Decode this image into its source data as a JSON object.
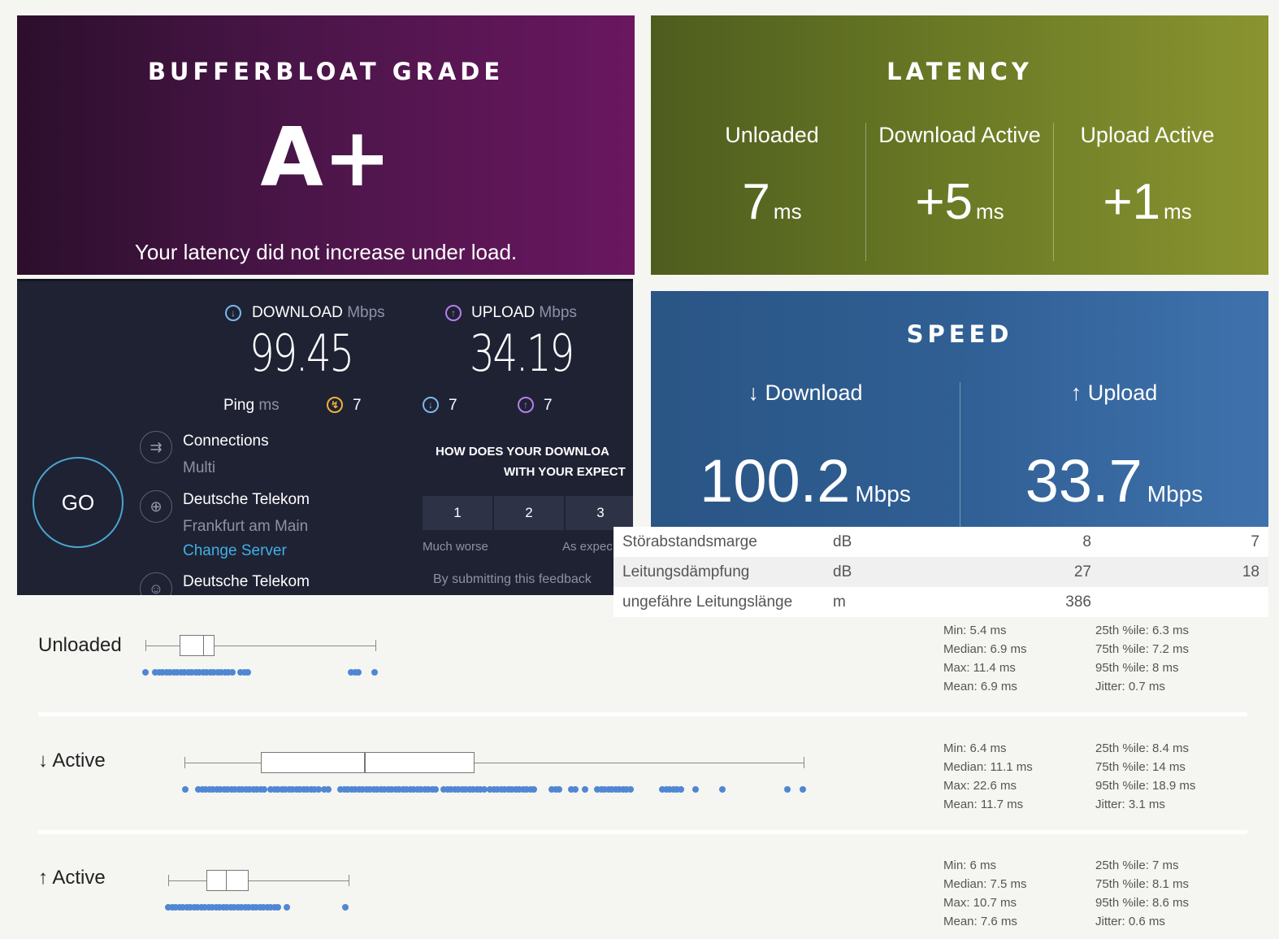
{
  "grade": {
    "title": "BUFFERBLOAT GRADE",
    "value": "A+",
    "message": "Your latency did not increase under load."
  },
  "latency": {
    "title": "LATENCY",
    "cols": [
      {
        "label": "Unloaded",
        "value": "7",
        "unit": "ms"
      },
      {
        "label": "Download Active",
        "value": "+5",
        "unit": "ms"
      },
      {
        "label": "Upload Active",
        "value": "+1",
        "unit": "ms"
      }
    ]
  },
  "speedtest": {
    "download_label": "DOWNLOAD",
    "download_unit": "Mbps",
    "download_value": "99.45",
    "upload_label": "UPLOAD",
    "upload_unit": "Mbps",
    "upload_value": "34.19",
    "ping_label": "Ping",
    "ping_unit": "ms",
    "ping_idle": "7",
    "ping_download": "7",
    "ping_upload": "7",
    "connections_label": "Connections",
    "connections_value": "Multi",
    "isp": "Deutsche Telekom",
    "server_location": "Frankfurt am Main",
    "change_server": "Change Server",
    "isp2": "Deutsche Telekom",
    "go_label": "GO",
    "feedback_q1": "HOW DOES YOUR DOWNLOA",
    "feedback_q2": "WITH YOUR EXPECT",
    "feedback_buttons": [
      "1",
      "2",
      "3"
    ],
    "scale_low": "Much worse",
    "scale_mid": "As expec",
    "submit_note": "By submitting this feedback"
  },
  "speed": {
    "title": "SPEED",
    "download_label": "↓ Download",
    "download_value": "100.2",
    "download_unit": "Mbps",
    "upload_label": "↑ Upload",
    "upload_value": "33.7",
    "upload_unit": "Mbps"
  },
  "dsl": [
    {
      "name": "Störabstandsmarge",
      "unit": "dB",
      "a": "8",
      "b": "7"
    },
    {
      "name": "Leitungsdämpfung",
      "unit": "dB",
      "a": "27",
      "b": "18"
    },
    {
      "name": "ungefähre Leitungslänge",
      "unit": "m",
      "a": "386",
      "b": ""
    }
  ],
  "distribution": [
    {
      "label": "Unloaded",
      "min": 5.4,
      "q1": 6.3,
      "median": 6.9,
      "q3": 7.2,
      "max": 11.4,
      "stats_left": [
        "Min: 5.4 ms",
        "Median: 6.9 ms",
        "Max: 11.4 ms",
        "Mean: 6.9 ms"
      ],
      "stats_right": [
        "25th %ile: 6.3 ms",
        "75th %ile: 7.2 ms",
        "95th %ile: 8 ms",
        "Jitter: 0.7 ms"
      ]
    },
    {
      "label": "↓ Active",
      "min": 6.4,
      "q1": 8.4,
      "median": 11.1,
      "q3": 14,
      "max": 22.6,
      "stats_left": [
        "Min: 6.4 ms",
        "Median: 11.1 ms",
        "Max: 22.6 ms",
        "Mean: 11.7 ms"
      ],
      "stats_right": [
        "25th %ile: 8.4 ms",
        "75th %ile: 14 ms",
        "95th %ile: 18.9 ms",
        "Jitter: 3.1 ms"
      ]
    },
    {
      "label": "↑ Active",
      "min": 6,
      "q1": 7,
      "median": 7.5,
      "q3": 8.1,
      "max": 10.7,
      "stats_left": [
        "Min: 6 ms",
        "Median: 7.5 ms",
        "Max: 10.7 ms",
        "Mean: 7.6 ms"
      ],
      "stats_right": [
        "25th %ile: 7 ms",
        "75th %ile: 8.1 ms",
        "95th %ile: 8.6 ms",
        "Jitter: 0.6 ms"
      ]
    }
  ]
}
